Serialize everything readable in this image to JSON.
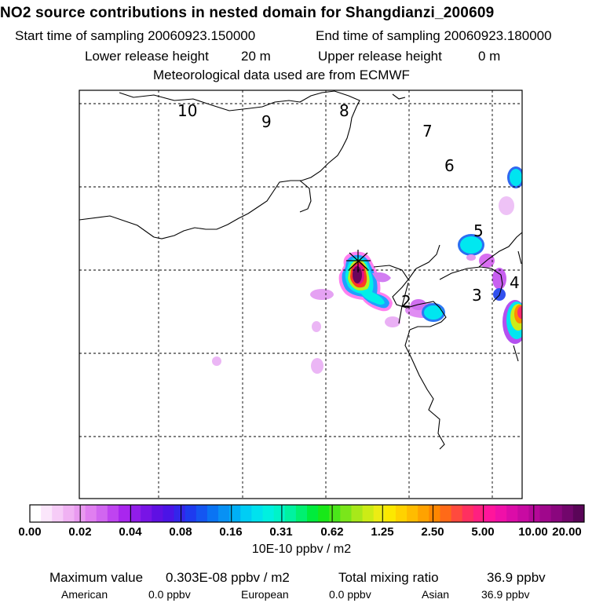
{
  "title": "NO2 source contributions in nested domain for Shangdianzi_200609",
  "sampling": {
    "start_label": "Start time of sampling 20060923.150000",
    "end_label": "End time of sampling 20060923.180000"
  },
  "release": {
    "lower_label": "Lower release height",
    "lower_value": "20 m",
    "upper_label": "Upper release height",
    "upper_value": "0 m"
  },
  "met_label": "Meteorological data used are from ECMWF",
  "map": {
    "labels": [
      "10",
      "9",
      "8",
      "7",
      "6",
      "5",
      "4",
      "3",
      "2"
    ],
    "marker": "receptor-plus"
  },
  "colorbar": {
    "tick_labels": [
      "0.00",
      "0.02",
      "0.04",
      "0.08",
      "0.16",
      "0.31",
      "0.62",
      "1.25",
      "2.50",
      "5.00",
      "10.00",
      "20.00"
    ],
    "colors": [
      "#ffffff",
      "#fbe6fb",
      "#f6ccf7",
      "#f0b2f3",
      "#e99af0",
      "#e07ff0",
      "#d166f0",
      "#bf44f0",
      "#a926ee",
      "#911de9",
      "#7814e6",
      "#5f10e3",
      "#4b14e6",
      "#3326ea",
      "#1e3bef",
      "#1456f1",
      "#0a74f3",
      "#0891f4",
      "#00b0f6",
      "#00cdf4",
      "#00e2ee",
      "#00f0e0",
      "#00f3c8",
      "#00f2a0",
      "#00f070",
      "#00ec3c",
      "#18e818",
      "#4ae61a",
      "#7ae61a",
      "#a8e81a",
      "#ccec16",
      "#ecec14",
      "#fce800",
      "#ffd200",
      "#ffbc00",
      "#ffa200",
      "#ff8600",
      "#ff6a18",
      "#ff4a3e",
      "#ff3060",
      "#ff2080",
      "#ff159c",
      "#f010a8",
      "#dc0ca8",
      "#c80aa2",
      "#b40898",
      "#a0078c",
      "#8a067e",
      "#72066c",
      "#5a0558"
    ],
    "unit": "10E-10 ppbv / m2"
  },
  "summary": {
    "max_label": "Maximum value",
    "max_value": "0.303E-08 ppbv / m2",
    "total_label": "Total mixing ratio",
    "total_value": "36.9 ppbv",
    "regions": [
      {
        "name": "American",
        "value": "0.0 ppbv"
      },
      {
        "name": "European",
        "value": "0.0 ppbv"
      },
      {
        "name": "Asian",
        "value": "36.9 ppbv"
      }
    ]
  }
}
